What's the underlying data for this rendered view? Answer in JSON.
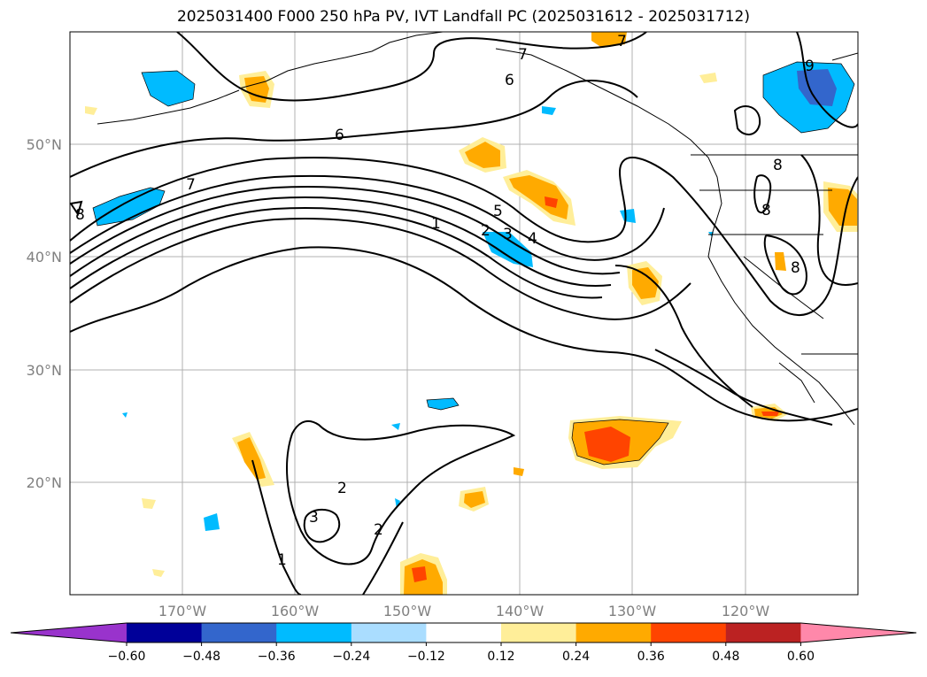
{
  "title": "2025031400 F000 250 hPa PV, IVT Landfall PC (2025031612 - 2025031712)",
  "lat_labels": [
    "50°N",
    "40°N",
    "30°N",
    "20°N"
  ],
  "lon_labels": [
    "170°W",
    "160°W",
    "150°W",
    "140°W",
    "130°W",
    "120°W"
  ],
  "colorbar": {
    "ticks": [
      "−0.60",
      "−0.48",
      "−0.36",
      "−0.24",
      "−0.12",
      "0.12",
      "0.24",
      "0.36",
      "0.48",
      "0.60"
    ],
    "colors": [
      "#9933cc",
      "#000099",
      "#3366cc",
      "#00bbff",
      "#aaddff",
      "#ffffff",
      "#ffee99",
      "#ffaa00",
      "#ff4400",
      "#bb2222",
      "#ff88aa"
    ]
  },
  "contour_labels": [
    "7",
    "6",
    "6",
    "7",
    "8",
    "1",
    "5",
    "2",
    "3",
    "4",
    "8",
    "8",
    "8",
    "9",
    "2",
    "3",
    "2",
    "1",
    "7"
  ]
}
